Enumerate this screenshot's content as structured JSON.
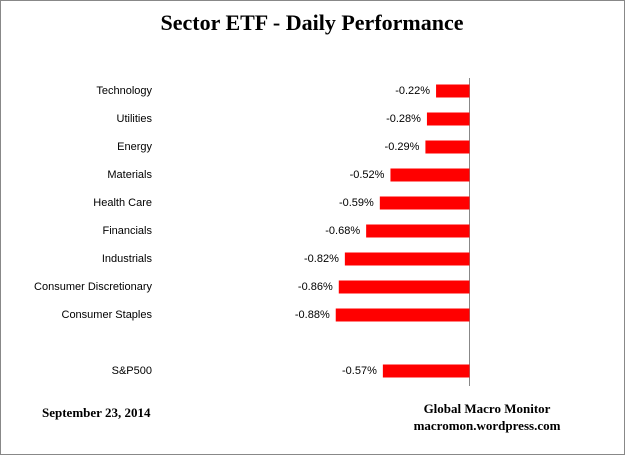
{
  "chart_data": {
    "type": "bar",
    "orientation": "horizontal",
    "title": "Sector ETF - Daily Performance",
    "categories": [
      "Technology",
      "Utilities",
      "Energy",
      "Materials",
      "Health Care",
      "Financials",
      "Industrials",
      "Consumer Discretionary",
      "Consumer Staples",
      null,
      "S&P500"
    ],
    "values": [
      -0.22,
      -0.28,
      -0.29,
      -0.52,
      -0.59,
      -0.68,
      -0.82,
      -0.86,
      -0.88,
      null,
      -0.57
    ],
    "value_labels": [
      "-0.22%",
      "-0.28%",
      "-0.29%",
      "-0.52%",
      "-0.59%",
      "-0.68%",
      "-0.82%",
      "-0.86%",
      "-0.88%",
      null,
      "-0.57%"
    ],
    "color": "#ff0000",
    "annotations": [
      "September 23, 2014",
      "Global Macro Monitor",
      "macromon.wordpress.com"
    ]
  }
}
